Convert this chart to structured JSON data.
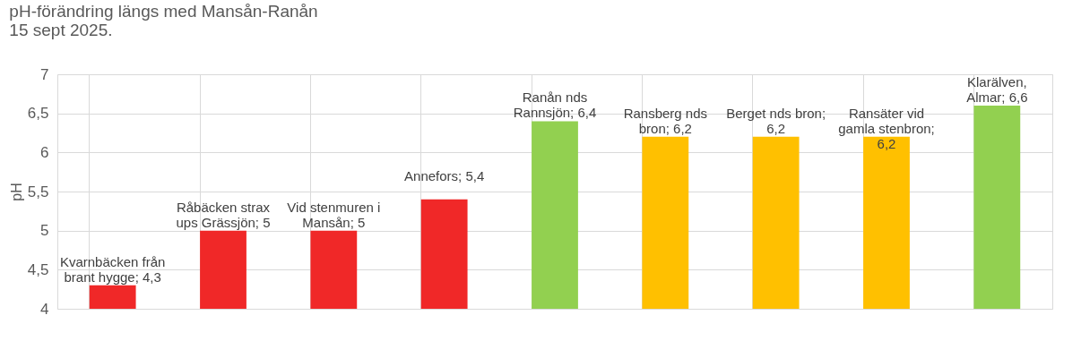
{
  "chart_data": {
    "type": "bar",
    "title": "pH-förändring längs med Mansån-Ranån",
    "subtitle": "15 sept 2025.",
    "ylabel": "pH",
    "categories": [
      null,
      null,
      null,
      null,
      null,
      null,
      null,
      null,
      null
    ],
    "values": [
      4.3,
      5,
      5,
      5.4,
      6.4,
      6.2,
      6.2,
      6.2,
      6.6
    ],
    "colors": [
      "#f02828",
      "#f02828",
      "#f02828",
      "#f02828",
      "#92d050",
      "#ffc000",
      "#ffc000",
      "#ffc000",
      "#92d050"
    ],
    "value_labels": [
      "Kvarnbäcken från brant hygge; 4,3",
      "Råbäcken strax ups Grässjön; 5",
      "Vid stenmuren i Mansån; 5",
      "Annefors; 5,4",
      "Ranån nds Rannsjön; 6,4",
      "Ransberg nds bron; 6,2",
      "Berget nds bron; 6,2",
      "Ransäter vid gamla stenbron; 6,2",
      "Klarälven, Almar; 6,6"
    ],
    "ylim": [
      4,
      7
    ],
    "yticks": [
      4,
      {
        "value": 4.5,
        "label": "4,5"
      },
      5,
      {
        "value": 5.5,
        "label": "5,5"
      },
      6,
      {
        "value": 6.5,
        "label": "6,5"
      },
      7
    ],
    "grid": true
  }
}
